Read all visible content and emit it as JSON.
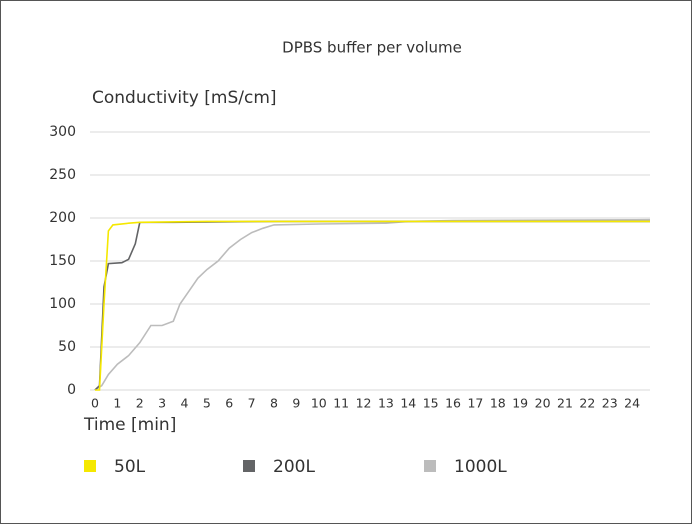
{
  "chart_data": {
    "type": "line",
    "title": "DPBS buffer per volume",
    "y_label": "Conductivity [mS/cm]",
    "x_label": "Time [min]",
    "xlim": [
      0,
      24.8
    ],
    "xticks": [
      0,
      1,
      2,
      3,
      4,
      5,
      6,
      7,
      8,
      9,
      10,
      11,
      12,
      13,
      14,
      15,
      16,
      17,
      18,
      19,
      20,
      21,
      22,
      23,
      24
    ],
    "ylim": [
      0,
      300
    ],
    "yticks": [
      0,
      50,
      100,
      150,
      200,
      250,
      300
    ],
    "grid": true,
    "legend": "bottom",
    "series": [
      {
        "name": "50L",
        "color": "#f5e800",
        "x": [
          0,
          0.2,
          0.4,
          0.6,
          0.8,
          1.5,
          2,
          5,
          24.8
        ],
        "values": [
          0,
          0,
          100,
          185,
          192,
          194,
          195,
          196,
          196
        ]
      },
      {
        "name": "200L",
        "color": "#636466",
        "x": [
          0,
          0.2,
          0.4,
          0.6,
          1.2,
          1.5,
          1.8,
          2,
          3.5,
          8,
          24.8
        ],
        "values": [
          0,
          5,
          120,
          147,
          148,
          152,
          170,
          195,
          195,
          196,
          196
        ]
      },
      {
        "name": "1000L",
        "color": "#bcbcbc",
        "x": [
          0,
          0.3,
          0.6,
          1,
          1.5,
          2,
          2.5,
          3,
          3.5,
          3.8,
          4.2,
          4.6,
          5,
          5.5,
          6,
          6.5,
          7,
          7.5,
          8,
          10,
          13,
          14,
          16,
          24.8
        ],
        "values": [
          0,
          5,
          18,
          30,
          40,
          55,
          75,
          75,
          80,
          100,
          115,
          130,
          140,
          150,
          165,
          175,
          183,
          188,
          192,
          193,
          194,
          196,
          197,
          198
        ]
      }
    ]
  }
}
